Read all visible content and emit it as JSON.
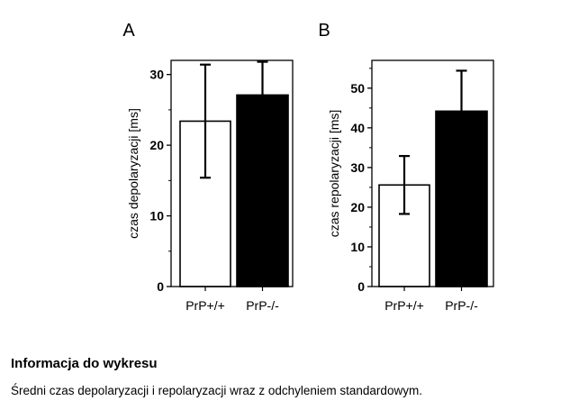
{
  "chart_data": [
    {
      "panel_label": "A",
      "type": "bar",
      "categories": [
        "PrP+/+",
        "PrP-/-"
      ],
      "values": [
        23.4,
        27.1
      ],
      "errors": [
        8.0,
        4.7
      ],
      "colors": [
        "#ffffff",
        "#000000"
      ],
      "ylabel": "czas depolaryzacji [ms]",
      "ylim": [
        0,
        32
      ],
      "yticks": [
        "0",
        "10",
        "20",
        "30"
      ],
      "grid": false
    },
    {
      "panel_label": "B",
      "type": "bar",
      "categories": [
        "PrP+/+",
        "PrP-/-"
      ],
      "values": [
        25.6,
        44.2
      ],
      "errors": [
        7.3,
        10.2
      ],
      "colors": [
        "#ffffff",
        "#000000"
      ],
      "ylabel": "czas repolaryzacji [ms]",
      "ylim": [
        0,
        57
      ],
      "yticks": [
        "0",
        "10",
        "20",
        "30",
        "40",
        "50"
      ],
      "grid": false
    }
  ],
  "caption": {
    "title": "Informacja do wykresu",
    "text": "Średni czas depolaryzacji i repolaryzacji wraz z odchyleniem standardowym."
  }
}
